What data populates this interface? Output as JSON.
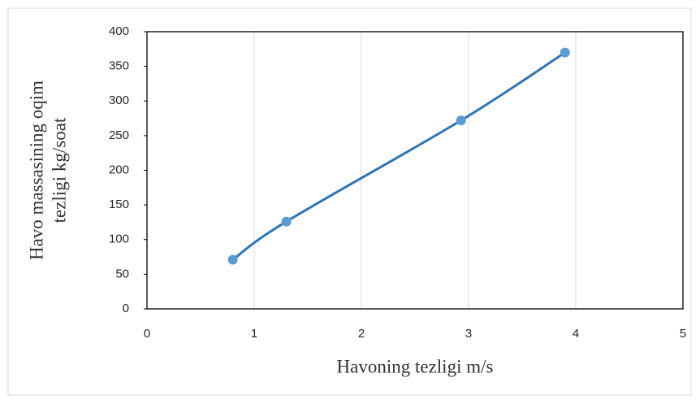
{
  "chart_data": {
    "type": "scatter",
    "smooth": true,
    "xlabel": "Havoning tezligi m/s",
    "ylabel": [
      "Havo massasining  oqim",
      "tezligi kg/soat"
    ],
    "x": [
      0.8,
      1.3,
      2.93,
      3.9
    ],
    "values": [
      71,
      126,
      272,
      370
    ],
    "color": "#2e75b6",
    "marker_color": "#5b9bd5",
    "xlim": [
      0,
      5
    ],
    "xticks": [
      0,
      1,
      2,
      3,
      4,
      5
    ],
    "ylim": [
      0,
      400
    ],
    "yticks": [
      0,
      50,
      100,
      150,
      200,
      250,
      300,
      350,
      400
    ],
    "grid": "x"
  }
}
